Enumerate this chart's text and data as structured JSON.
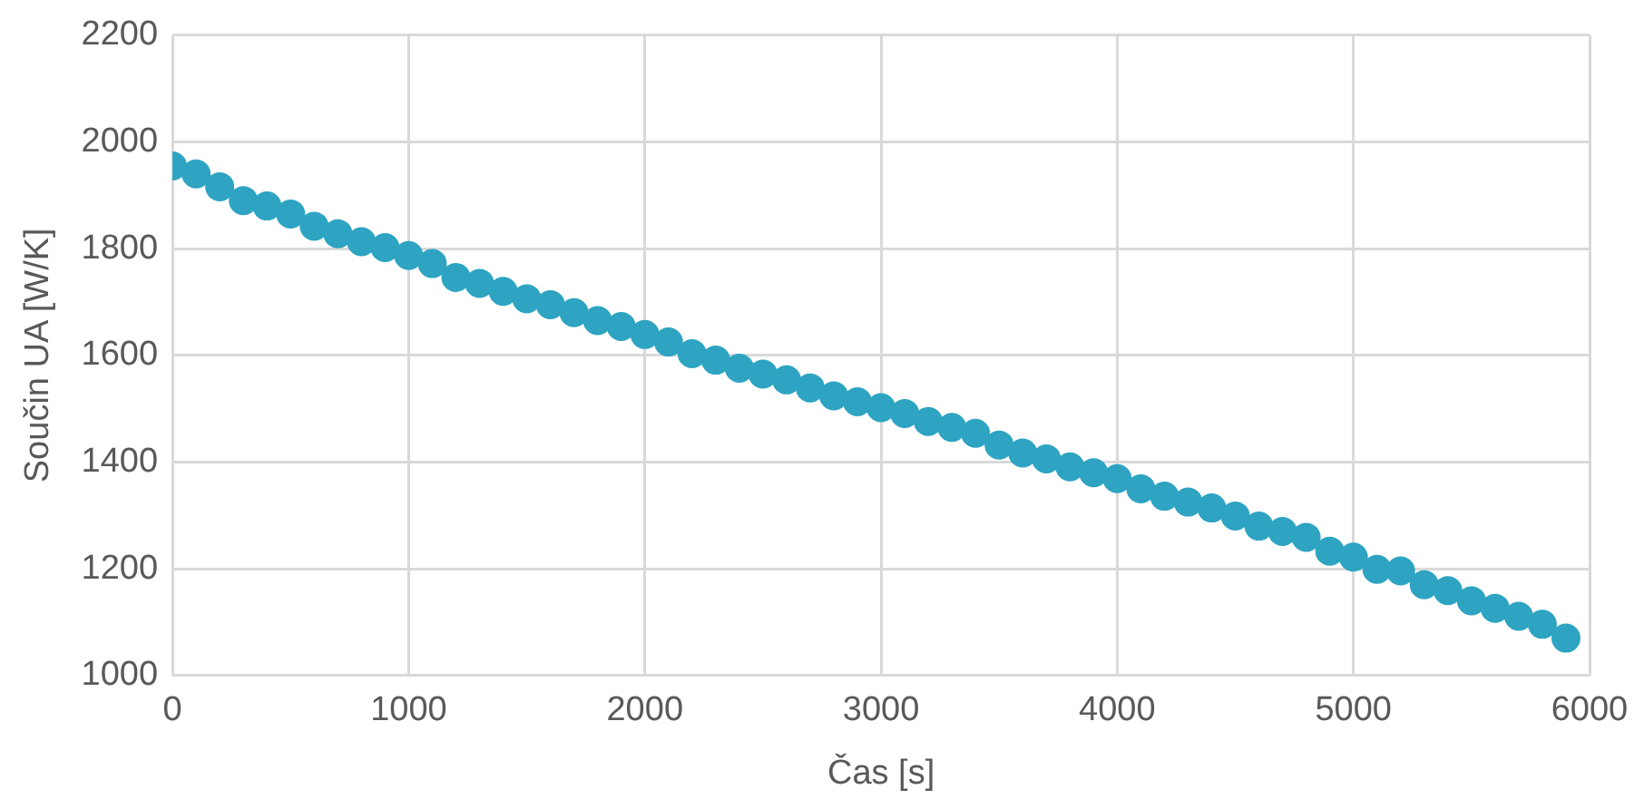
{
  "chart_data": {
    "type": "scatter",
    "xlabel": "Čas [s]",
    "ylabel": "Součin UA [W/K]",
    "x": [
      0,
      100,
      200,
      300,
      400,
      500,
      600,
      700,
      800,
      900,
      1000,
      1100,
      1200,
      1300,
      1400,
      1500,
      1600,
      1700,
      1800,
      1900,
      2000,
      2100,
      2200,
      2300,
      2400,
      2500,
      2600,
      2700,
      2800,
      2900,
      3000,
      3100,
      3200,
      3300,
      3400,
      3500,
      3600,
      3700,
      3800,
      3900,
      4000,
      4100,
      4200,
      4300,
      4400,
      4500,
      4600,
      4700,
      4800,
      4900,
      5000,
      5100,
      5200,
      5300,
      5400,
      5500,
      5600,
      5700,
      5800,
      5900
    ],
    "values": [
      1955,
      1940,
      1916,
      1890,
      1880,
      1865,
      1842,
      1828,
      1813,
      1802,
      1787,
      1772,
      1746,
      1735,
      1720,
      1706,
      1695,
      1680,
      1665,
      1654,
      1639,
      1625,
      1603,
      1591,
      1576,
      1565,
      1554,
      1539,
      1524,
      1513,
      1502,
      1491,
      1476,
      1465,
      1454,
      1432,
      1417,
      1406,
      1391,
      1380,
      1369,
      1350,
      1336,
      1325,
      1314,
      1299,
      1280,
      1270,
      1259,
      1233,
      1222,
      1199,
      1196,
      1170,
      1159,
      1140,
      1126,
      1111,
      1096,
      1070
    ],
    "color": "#2ea4c2",
    "marker": "circle",
    "xlim": [
      0,
      6000
    ],
    "xticks": [
      0,
      1000,
      2000,
      3000,
      4000,
      5000,
      6000
    ],
    "ylim": [
      1000,
      2200
    ],
    "yticks": [
      1000,
      1200,
      1400,
      1600,
      1800,
      2000,
      2200
    ],
    "grid": true,
    "legend": false
  }
}
